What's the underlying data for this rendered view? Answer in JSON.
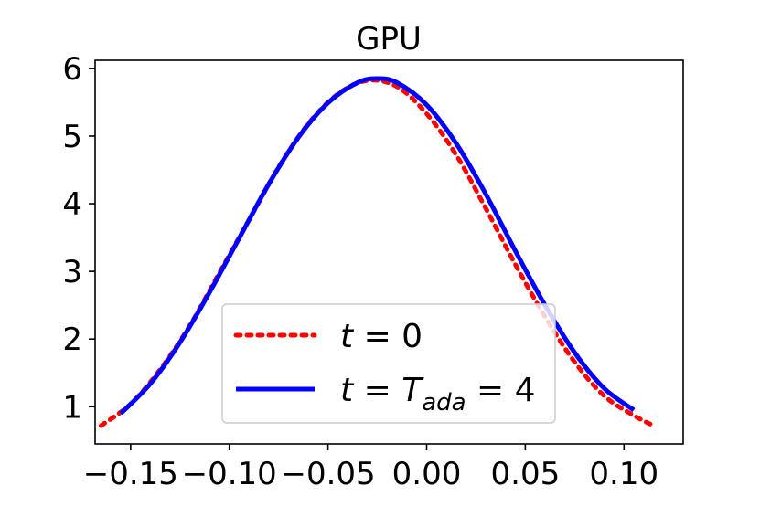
{
  "chart_data": {
    "type": "line",
    "title": "GPU",
    "xlabel": "",
    "ylabel": "",
    "xlim": [
      -0.168,
      0.13
    ],
    "ylim": [
      0.45,
      6.12
    ],
    "xticks": [
      -0.15,
      -0.1,
      -0.05,
      0.0,
      0.05,
      0.1
    ],
    "xtick_labels": [
      "−0.15",
      "−0.10",
      "−0.05",
      "0.00",
      "0.05",
      "0.10"
    ],
    "yticks": [
      1,
      2,
      3,
      4,
      5,
      6
    ],
    "ytick_labels": [
      "1",
      "2",
      "3",
      "4",
      "5",
      "6"
    ],
    "grid": false,
    "legend_position": "lower center",
    "series": [
      {
        "name": "t = 0",
        "color": "#ff0000",
        "style": "dotted",
        "x": [
          -0.165,
          -0.15,
          -0.135,
          -0.12,
          -0.105,
          -0.09,
          -0.075,
          -0.06,
          -0.045,
          -0.03,
          -0.015,
          0.0,
          0.015,
          0.03,
          0.045,
          0.06,
          0.075,
          0.09,
          0.105,
          0.115
        ],
        "y": [
          0.72,
          1.04,
          1.55,
          2.2,
          2.98,
          3.76,
          4.54,
          5.18,
          5.62,
          5.82,
          5.73,
          5.33,
          4.72,
          3.93,
          3.1,
          2.33,
          1.66,
          1.16,
          0.87,
          0.72
        ]
      },
      {
        "name": "t = T_ada = 4",
        "color": "#0000ff",
        "style": "solid",
        "x": [
          -0.155,
          -0.14,
          -0.125,
          -0.11,
          -0.095,
          -0.08,
          -0.065,
          -0.05,
          -0.035,
          -0.025,
          -0.015,
          0.0,
          0.015,
          0.03,
          0.045,
          0.06,
          0.075,
          0.09,
          0.105
        ],
        "y": [
          0.9,
          1.34,
          1.95,
          2.69,
          3.49,
          4.29,
          4.98,
          5.49,
          5.79,
          5.85,
          5.79,
          5.46,
          4.89,
          4.14,
          3.3,
          2.5,
          1.8,
          1.27,
          0.95
        ]
      }
    ]
  }
}
